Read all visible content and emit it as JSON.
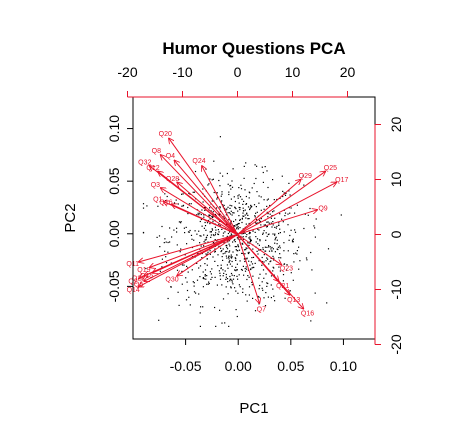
{
  "chart_data": {
    "type": "scatter",
    "subtype": "biplot",
    "title": "Humor Questions PCA",
    "xlabel": "PC1",
    "ylabel": "PC2",
    "xlim": [
      -0.1,
      0.13
    ],
    "ylim": [
      -0.1,
      0.13
    ],
    "x_ticks": [
      "-0.05",
      "0.00",
      "0.05",
      "0.10"
    ],
    "y_ticks": [
      "-0.05",
      "0.00",
      "0.05",
      "0.10"
    ],
    "x_tick_values": [
      -0.05,
      0.0,
      0.05,
      0.1
    ],
    "y_tick_values": [
      -0.05,
      0.0,
      0.05,
      0.1
    ],
    "loading_scale": {
      "xlim": [
        -19,
        25
      ],
      "ylim": [
        -19,
        25
      ],
      "top_ticks": [
        "-20",
        "-10",
        "0",
        "10",
        "20"
      ],
      "right_ticks": [
        "-20",
        "-10",
        "0",
        "10",
        "20"
      ],
      "tick_values": [
        -20,
        -10,
        0,
        10,
        20
      ],
      "color": "#e8132b"
    },
    "point_color": "#000000",
    "arrow_color": "#e8132b",
    "grid": false,
    "loadings": [
      {
        "name": "Q20",
        "x": -12.5,
        "y": 17.5
      },
      {
        "name": "Q8",
        "x": -14,
        "y": 14.5
      },
      {
        "name": "Q4",
        "x": -11.5,
        "y": 13.5
      },
      {
        "name": "Q32",
        "x": -16,
        "y": 12.5
      },
      {
        "name": "Q12",
        "x": -14.5,
        "y": 11.5
      },
      {
        "name": "Q24",
        "x": -6.5,
        "y": 12.5
      },
      {
        "name": "Q3",
        "x": -14,
        "y": 8.5
      },
      {
        "name": "Q28",
        "x": -11,
        "y": 9.5
      },
      {
        "name": "Q1",
        "x": -13.5,
        "y": 6
      },
      {
        "name": "Q16b",
        "label": "Q16",
        "x": -12,
        "y": 5.5
      },
      {
        "name": "Q11",
        "x": -18,
        "y": -5
      },
      {
        "name": "Q19",
        "x": -16,
        "y": -6
      },
      {
        "name": "Q15",
        "x": -15.5,
        "y": -7
      },
      {
        "name": "Q22",
        "x": -17,
        "y": -7.5
      },
      {
        "name": "Q30",
        "x": -11,
        "y": -7.5
      },
      {
        "name": "Q2",
        "x": -18,
        "y": -8
      },
      {
        "name": "Q6",
        "x": -17,
        "y": -8.5
      },
      {
        "name": "Q14",
        "x": -18,
        "y": -9.5
      },
      {
        "name": "Q25",
        "x": 16,
        "y": 11.5
      },
      {
        "name": "Q29",
        "x": 11.5,
        "y": 10
      },
      {
        "name": "Q17",
        "x": 18,
        "y": 9.5
      },
      {
        "name": "Q9",
        "x": 14.5,
        "y": 4.5
      },
      {
        "name": "Q23",
        "x": 8,
        "y": -5.5
      },
      {
        "name": "Q21",
        "x": 7.5,
        "y": -8.5
      },
      {
        "name": "Q13",
        "x": 9.5,
        "y": -11
      },
      {
        "name": "Q16",
        "x": 12,
        "y": -13.5
      },
      {
        "name": "Q7",
        "x": 4,
        "y": -12.5
      }
    ]
  }
}
